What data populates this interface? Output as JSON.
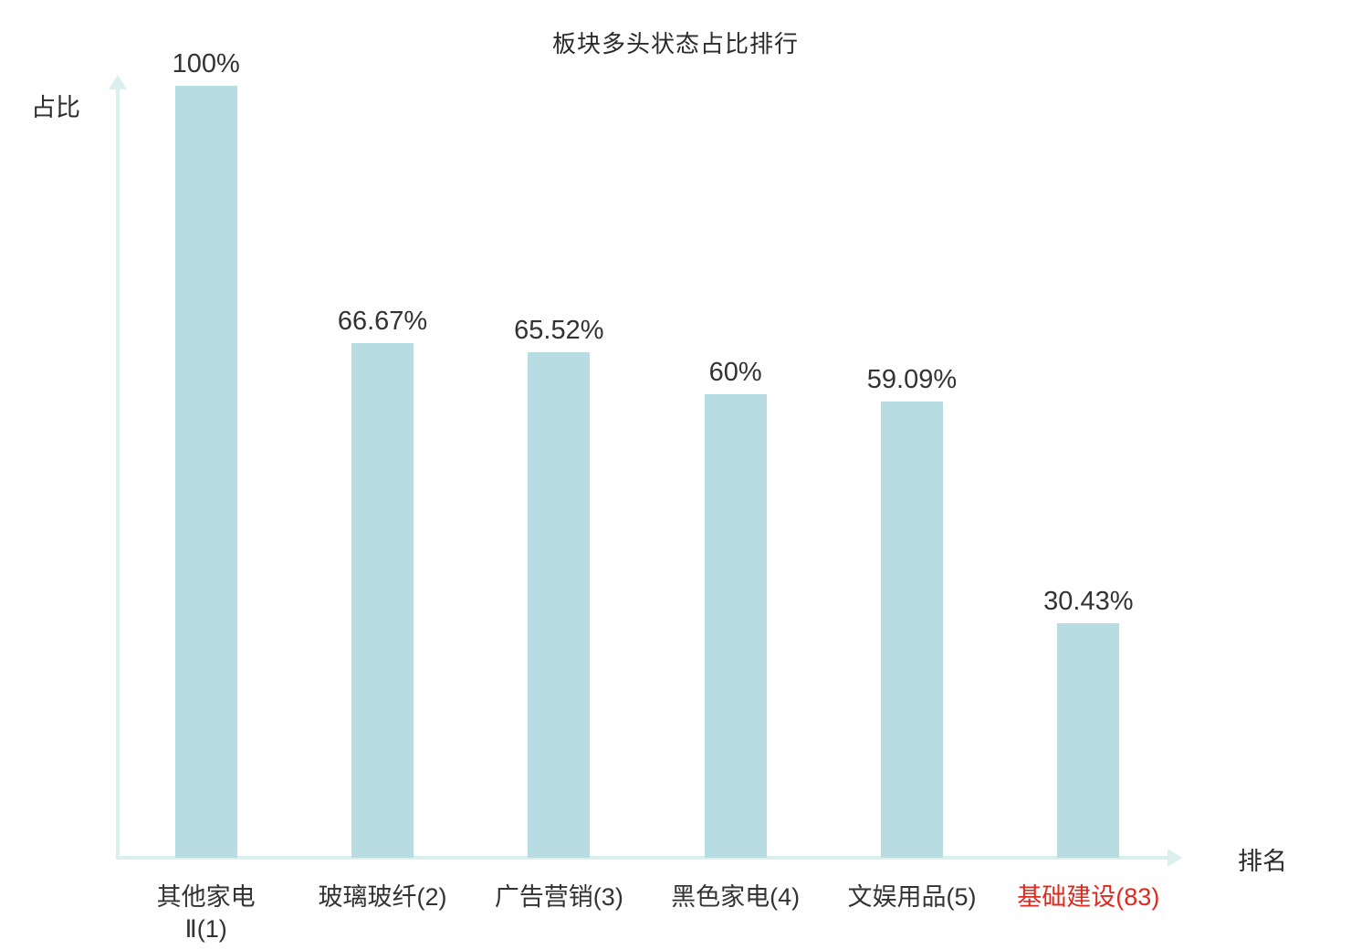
{
  "chart_data": {
    "type": "bar",
    "title": "板块多头状态占比排行",
    "xlabel": "排名",
    "ylabel": "占比",
    "ylim": [
      0,
      100
    ],
    "grid": false,
    "legend": "none",
    "categories": [
      "其他家电Ⅱ(1)",
      "玻璃玻纤(2)",
      "广告营销(3)",
      "黑色家电(4)",
      "文娱用品(5)",
      "基础建设(83)"
    ],
    "category_lines": [
      [
        "其他家电",
        "Ⅱ(1)"
      ],
      [
        "玻璃玻纤(2)"
      ],
      [
        "广告营销(3)"
      ],
      [
        "黑色家电(4)"
      ],
      [
        "文娱用品(5)"
      ],
      [
        "基础建设(83)"
      ]
    ],
    "values": [
      100,
      66.67,
      65.52,
      60,
      59.09,
      30.43
    ],
    "value_labels": [
      "100%",
      "66.67%",
      "65.52%",
      "60%",
      "59.09%",
      "30.43%"
    ],
    "highlight_index": 5,
    "colors": {
      "bar_fill": "#b7dde2",
      "axis": "#daf0ef",
      "text": "#333333",
      "highlight_text": "#e02a20"
    }
  }
}
